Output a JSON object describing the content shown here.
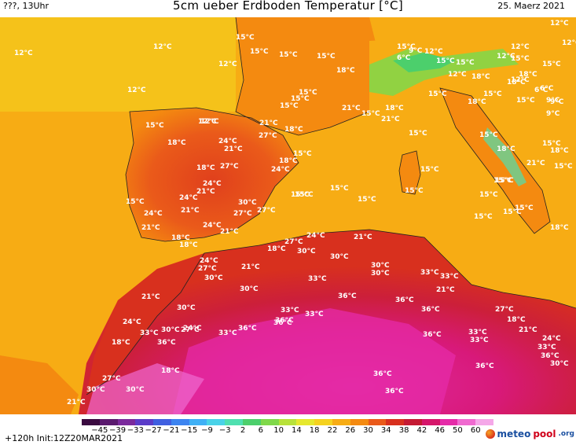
{
  "header": {
    "left": "???, 13Uhr",
    "title": "5cm ueber Erdboden Temperatur [°C]",
    "date": "25. Maerz 2021"
  },
  "legend": {
    "ticks": [
      "-45",
      "-39",
      "-33",
      "-27",
      "-21",
      "-15",
      "-9",
      "-3",
      "2",
      "6",
      "10",
      "14",
      "18",
      "22",
      "26",
      "30",
      "34",
      "38",
      "42",
      "46",
      "50",
      "60"
    ],
    "colors": [
      "#3a0a40",
      "#5a1a6e",
      "#7a2a9c",
      "#5a3cc8",
      "#3f5fe0",
      "#3c84f0",
      "#3fb0f5",
      "#49d2e8",
      "#4fe0b0",
      "#4ccf6c",
      "#7fd84a",
      "#b8e23a",
      "#e6e82e",
      "#f5d21f",
      "#f7ac14",
      "#f48a10",
      "#ea5a1a",
      "#d8301e",
      "#c41a33",
      "#d5166a",
      "#e52ba8",
      "#f06ad0",
      "#f5a8e8"
    ]
  },
  "footer": {
    "run": "+120h  Init:12Z20MAR2021",
    "brand_meteo": "meteo",
    "brand_pool": "pool",
    "brand_org": ".org"
  },
  "map_labels": [
    {
      "t": "12°C"
    },
    {
      "t": "12°C"
    },
    {
      "t": "12°C"
    },
    {
      "t": "12°C"
    },
    {
      "t": "15°C"
    },
    {
      "t": "15°C"
    },
    {
      "t": "15°C"
    },
    {
      "t": "15°C"
    },
    {
      "t": "18°C"
    },
    {
      "t": "15°C"
    },
    {
      "t": "15°C"
    },
    {
      "t": "21°C"
    },
    {
      "t": "15°C"
    },
    {
      "t": "15°C"
    },
    {
      "t": "21°C"
    },
    {
      "t": "12°C"
    },
    {
      "t": "18°C"
    },
    {
      "t": "12°C"
    },
    {
      "t": "27°C"
    },
    {
      "t": "24°C"
    },
    {
      "t": "21°C"
    },
    {
      "t": "15°C"
    },
    {
      "t": "18°C"
    },
    {
      "t": "24°C"
    },
    {
      "t": "18°C"
    },
    {
      "t": "27°C"
    },
    {
      "t": "18°C"
    },
    {
      "t": "24°C"
    },
    {
      "t": "21°C"
    },
    {
      "t": "15°C"
    },
    {
      "t": "15°C"
    },
    {
      "t": "24°C"
    },
    {
      "t": "21°C"
    },
    {
      "t": "27°C"
    },
    {
      "t": "30°C"
    },
    {
      "t": "27°C"
    },
    {
      "t": "15°C"
    },
    {
      "t": "24°C"
    },
    {
      "t": "21°C"
    },
    {
      "t": "24°C"
    },
    {
      "t": "21°C"
    },
    {
      "t": "18°C"
    },
    {
      "t": "18°C"
    },
    {
      "t": "27°C"
    },
    {
      "t": "24°C"
    },
    {
      "t": "21°C"
    },
    {
      "t": "18°C"
    },
    {
      "t": "30°C"
    },
    {
      "t": "24°C"
    },
    {
      "t": "27°C"
    },
    {
      "t": "30°C"
    },
    {
      "t": "21°C"
    },
    {
      "t": "30°C"
    },
    {
      "t": "30°C"
    },
    {
      "t": "30°C"
    },
    {
      "t": "33°C"
    },
    {
      "t": "33°C"
    },
    {
      "t": "21°C"
    },
    {
      "t": "24°C"
    },
    {
      "t": "30°C"
    },
    {
      "t": "33°C"
    },
    {
      "t": "36°C"
    },
    {
      "t": "36°C"
    },
    {
      "t": "33°C"
    },
    {
      "t": "36°C"
    },
    {
      "t": "24°C"
    },
    {
      "t": "30°C"
    },
    {
      "t": "27°C"
    },
    {
      "t": "33°C"
    },
    {
      "t": "33°C"
    },
    {
      "t": "36°C"
    },
    {
      "t": "36°C"
    },
    {
      "t": "18°C"
    },
    {
      "t": "36°C"
    },
    {
      "t": "33°C"
    },
    {
      "t": "27°C"
    },
    {
      "t": "36°C"
    },
    {
      "t": "30°C"
    },
    {
      "t": "33°C"
    },
    {
      "t": "18°C"
    },
    {
      "t": "21°C"
    },
    {
      "t": "24°C"
    },
    {
      "t": "33°C"
    },
    {
      "t": "36°C"
    },
    {
      "t": "36°C"
    },
    {
      "t": "27°C"
    },
    {
      "t": "18°C"
    },
    {
      "t": "30°C"
    },
    {
      "t": "21°C"
    },
    {
      "t": "30°C"
    },
    {
      "t": "36°C"
    },
    {
      "t": "36°C"
    },
    {
      "t": "30°C"
    },
    {
      "t": "21°C"
    },
    {
      "t": "36°C"
    },
    {
      "t": "33°C"
    },
    {
      "t": "15°C"
    },
    {
      "t": "15°C"
    },
    {
      "t": "15°C"
    },
    {
      "t": "15°C"
    },
    {
      "t": "15°C"
    },
    {
      "t": "15°C"
    },
    {
      "t": "15°C"
    },
    {
      "t": "15°C"
    },
    {
      "t": "18°C"
    },
    {
      "t": "15°C"
    },
    {
      "t": "15°C"
    },
    {
      "t": "21°C"
    },
    {
      "t": "18°C"
    },
    {
      "t": "12°C"
    },
    {
      "t": "12°C"
    },
    {
      "t": "9°C"
    },
    {
      "t": "15°C"
    },
    {
      "t": "12°C"
    },
    {
      "t": "6°C"
    },
    {
      "t": "15°C"
    },
    {
      "t": "18°C"
    },
    {
      "t": "12°C"
    },
    {
      "t": "18°C"
    },
    {
      "t": "15°C"
    },
    {
      "t": "6°C"
    },
    {
      "t": "9°C"
    },
    {
      "t": "15°C"
    },
    {
      "t": "18°C"
    },
    {
      "t": "15°C"
    },
    {
      "t": "15°C"
    },
    {
      "t": "18°C"
    },
    {
      "t": "15°C"
    },
    {
      "t": "15°C"
    },
    {
      "t": "15°C"
    },
    {
      "t": "15°C"
    },
    {
      "t": "15°C"
    },
    {
      "t": "18°C"
    },
    {
      "t": "15°C"
    },
    {
      "t": "12°C"
    },
    {
      "t": "12°C"
    },
    {
      "t": "9°C"
    },
    {
      "t": "9°C"
    },
    {
      "t": "6°C"
    },
    {
      "t": "12°C"
    },
    {
      "t": "15°C"
    },
    {
      "t": "21°C"
    },
    {
      "t": "18°C"
    }
  ]
}
